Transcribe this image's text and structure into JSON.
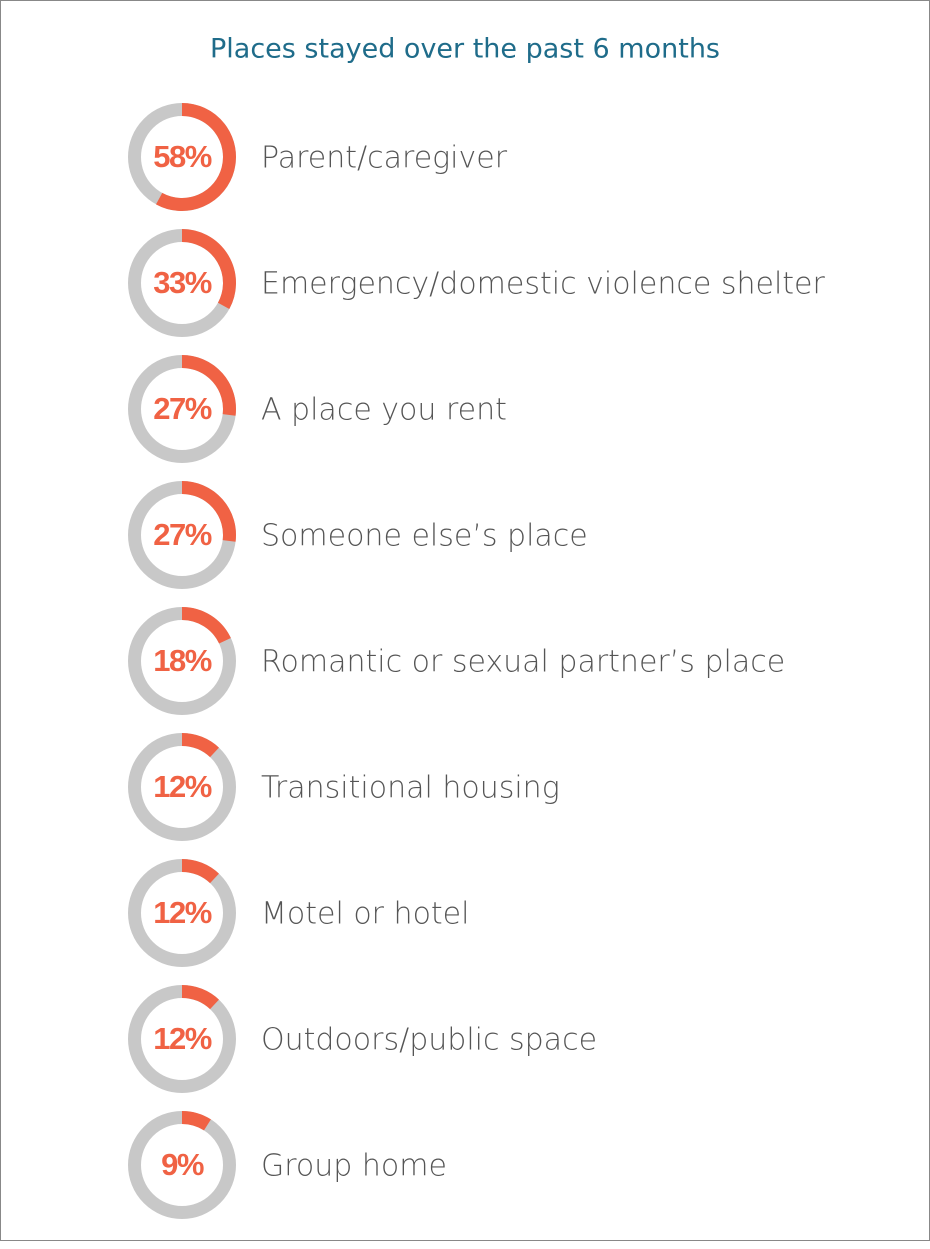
{
  "chart_data": {
    "type": "donut",
    "title": "Places stayed over the past 6 months",
    "categories": [
      "Parent/caregiver",
      "Emergency/domestic violence shelter",
      "A place you rent",
      "Someone else’s place",
      "Romantic or sexual partner’s place",
      "Transitional housing",
      "Motel or hotel",
      "Outdoors/public space",
      "Group home"
    ],
    "values": [
      58,
      33,
      27,
      27,
      18,
      12,
      12,
      12,
      9
    ],
    "value_labels": [
      "58%",
      "33%",
      "27%",
      "27%",
      "18%",
      "12%",
      "12%",
      "12%",
      "9%"
    ],
    "color": "#f06244",
    "track_color": "#c8c8c8"
  }
}
